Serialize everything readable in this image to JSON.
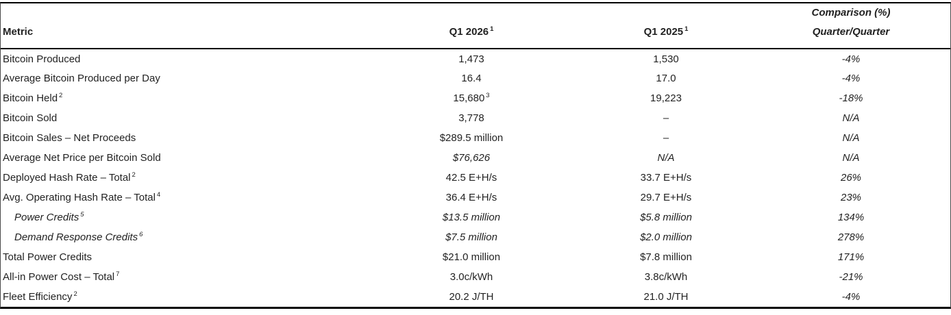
{
  "table": {
    "colors": {
      "text": "#222222",
      "border": "#000000",
      "background": "#ffffff"
    },
    "headers": {
      "metric": "Metric",
      "q1_2026": "Q1 2026",
      "q1_2026_sup": "1",
      "q1_2025": "Q1 2025",
      "q1_2025_sup": "1",
      "comparison_line1": "Comparison (%)",
      "comparison_line2": "Quarter/Quarter"
    },
    "rows": [
      {
        "label": "Bitcoin Produced",
        "label_sup": "",
        "indent": false,
        "label_italic": false,
        "q1_2026": "1,473",
        "q1_2026_sup": "",
        "q1_2026_italic": false,
        "q1_2025": "1,530",
        "q1_2025_italic": false,
        "comparison": "-4%"
      },
      {
        "label": "Average Bitcoin Produced per Day",
        "label_sup": "",
        "indent": false,
        "label_italic": false,
        "q1_2026": "16.4",
        "q1_2026_sup": "",
        "q1_2026_italic": false,
        "q1_2025": "17.0",
        "q1_2025_italic": false,
        "comparison": "-4%"
      },
      {
        "label": "Bitcoin Held",
        "label_sup": "2",
        "indent": false,
        "label_italic": false,
        "q1_2026": "15,680",
        "q1_2026_sup": "3",
        "q1_2026_italic": false,
        "q1_2025": "19,223",
        "q1_2025_italic": false,
        "comparison": "-18%"
      },
      {
        "label": "Bitcoin Sold",
        "label_sup": "",
        "indent": false,
        "label_italic": false,
        "q1_2026": "3,778",
        "q1_2026_sup": "",
        "q1_2026_italic": false,
        "q1_2025": "–",
        "q1_2025_italic": false,
        "comparison": "N/A"
      },
      {
        "label": "Bitcoin Sales – Net Proceeds",
        "label_sup": "",
        "indent": false,
        "label_italic": false,
        "q1_2026": "$289.5 million",
        "q1_2026_sup": "",
        "q1_2026_italic": false,
        "q1_2025": "–",
        "q1_2025_italic": false,
        "comparison": "N/A"
      },
      {
        "label": "Average Net Price per Bitcoin Sold",
        "label_sup": "",
        "indent": false,
        "label_italic": false,
        "q1_2026": "$76,626",
        "q1_2026_sup": "",
        "q1_2026_italic": true,
        "q1_2025": "N/A",
        "q1_2025_italic": true,
        "comparison": "N/A"
      },
      {
        "label": "Deployed Hash Rate – Total",
        "label_sup": "2",
        "indent": false,
        "label_italic": false,
        "q1_2026": "42.5 E+H/s",
        "q1_2026_sup": "",
        "q1_2026_italic": false,
        "q1_2025": "33.7 E+H/s",
        "q1_2025_italic": false,
        "comparison": "26%"
      },
      {
        "label": "Avg. Operating Hash Rate – Total",
        "label_sup": "4",
        "indent": false,
        "label_italic": false,
        "q1_2026": "36.4 E+H/s",
        "q1_2026_sup": "",
        "q1_2026_italic": false,
        "q1_2025": "29.7 E+H/s",
        "q1_2025_italic": false,
        "comparison": "23%"
      },
      {
        "label": "Power Credits",
        "label_sup": "5",
        "indent": true,
        "label_italic": true,
        "q1_2026": "$13.5 million",
        "q1_2026_sup": "",
        "q1_2026_italic": true,
        "q1_2025": "$5.8 million",
        "q1_2025_italic": true,
        "comparison": "134%"
      },
      {
        "label": "Demand Response Credits",
        "label_sup": "6",
        "indent": true,
        "label_italic": true,
        "q1_2026": "$7.5 million",
        "q1_2026_sup": "",
        "q1_2026_italic": true,
        "q1_2025": "$2.0 million",
        "q1_2025_italic": true,
        "comparison": "278%"
      },
      {
        "label": "Total Power Credits",
        "label_sup": "",
        "indent": false,
        "label_italic": false,
        "q1_2026": "$21.0 million",
        "q1_2026_sup": "",
        "q1_2026_italic": false,
        "q1_2025": "$7.8 million",
        "q1_2025_italic": false,
        "comparison": "171%"
      },
      {
        "label": "All-in Power Cost – Total",
        "label_sup": "7",
        "indent": false,
        "label_italic": false,
        "q1_2026": "3.0c/kWh",
        "q1_2026_sup": "",
        "q1_2026_italic": false,
        "q1_2025": "3.8c/kWh",
        "q1_2025_italic": false,
        "comparison": "-21%"
      },
      {
        "label": "Fleet Efficiency",
        "label_sup": "2",
        "indent": false,
        "label_italic": false,
        "q1_2026": "20.2 J/TH",
        "q1_2026_sup": "",
        "q1_2026_italic": false,
        "q1_2025": "21.0 J/TH",
        "q1_2025_italic": false,
        "comparison": "-4%"
      }
    ]
  }
}
